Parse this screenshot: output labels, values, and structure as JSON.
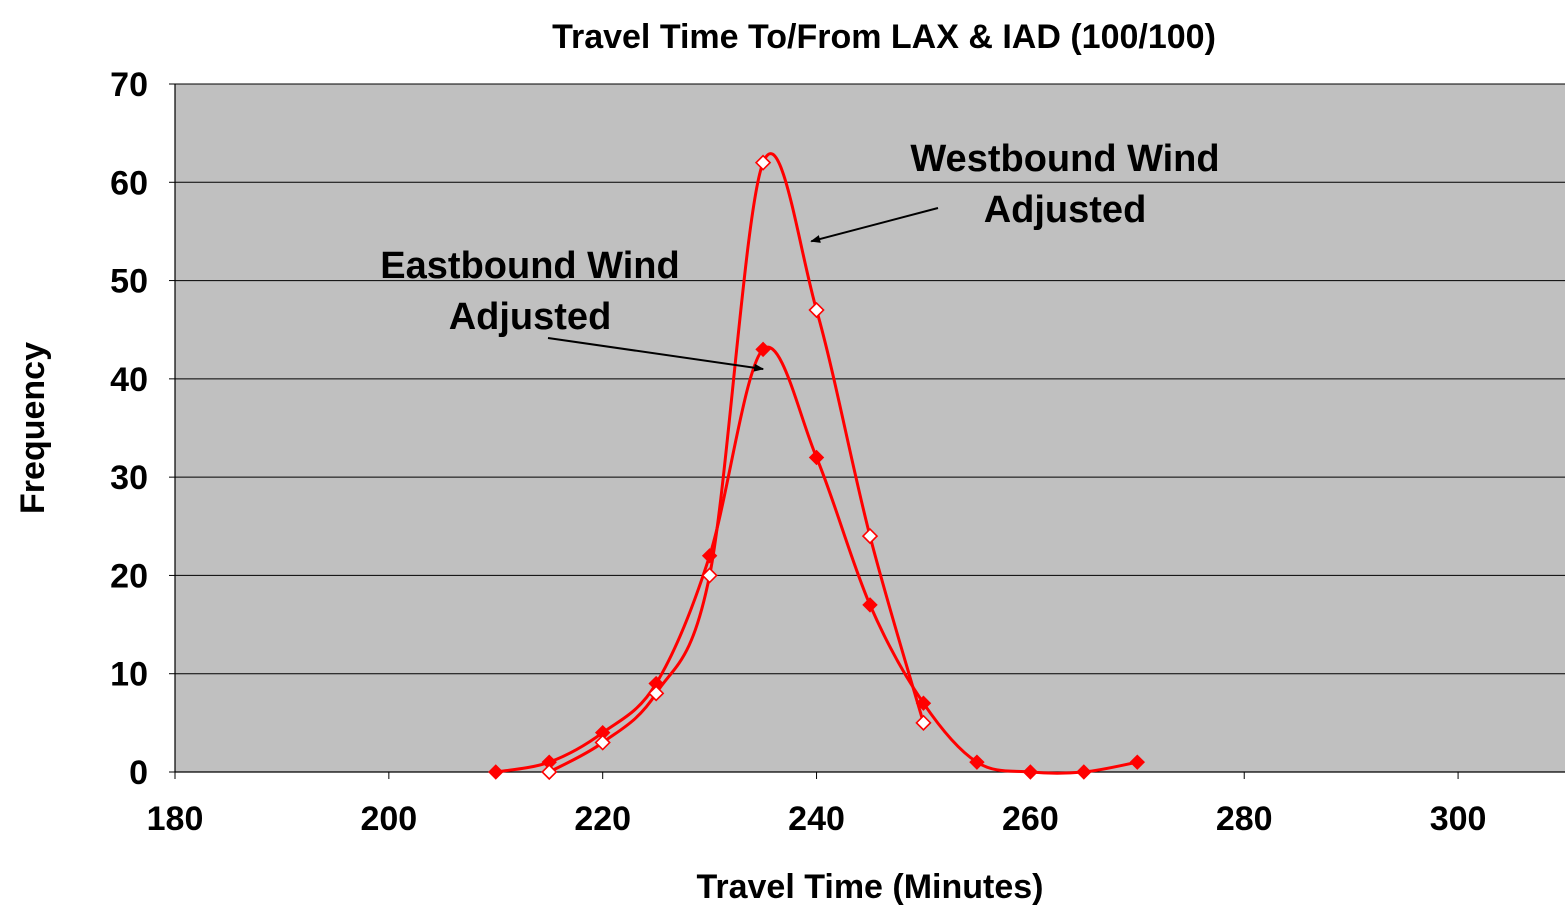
{
  "chart_data": {
    "type": "line",
    "title": "Travel Time To/From LAX & IAD (100/100)",
    "xlabel": "Travel Time (Minutes)",
    "ylabel": "Frequency",
    "xlim": [
      180,
      310
    ],
    "ylim": [
      0,
      70
    ],
    "x_ticks": [
      "180",
      "200",
      "220",
      "240",
      "260",
      "280",
      "300"
    ],
    "y_ticks": [
      "0",
      "10",
      "20",
      "30",
      "40",
      "50",
      "60",
      "70"
    ],
    "grid": "horizontal",
    "plot_background": "#c0c0c0",
    "series": [
      {
        "key": "eastbound",
        "color": "#ff0000",
        "marker": "diamond-filled",
        "x": [
          210,
          215,
          220,
          225,
          230,
          235,
          240,
          245,
          250,
          255,
          260,
          265,
          270
        ],
        "y": [
          0,
          1,
          4,
          9,
          22,
          43,
          32,
          17,
          7,
          1,
          0,
          0,
          1
        ]
      },
      {
        "key": "westbound",
        "color": "#ff0000",
        "marker": "diamond-open",
        "x": [
          215,
          220,
          225,
          230,
          235,
          240,
          245,
          250
        ],
        "y": [
          0,
          3,
          8,
          20,
          62,
          47,
          24,
          5
        ]
      }
    ],
    "annotations": [
      {
        "key": "westbound",
        "lines": [
          "Westbound Wind",
          "Adjusted"
        ],
        "arrow_to": [
          239.5,
          54
        ]
      },
      {
        "key": "eastbound",
        "lines": [
          "Eastbound Wind",
          "Adjusted"
        ],
        "arrow_to": [
          235,
          41
        ]
      }
    ]
  }
}
